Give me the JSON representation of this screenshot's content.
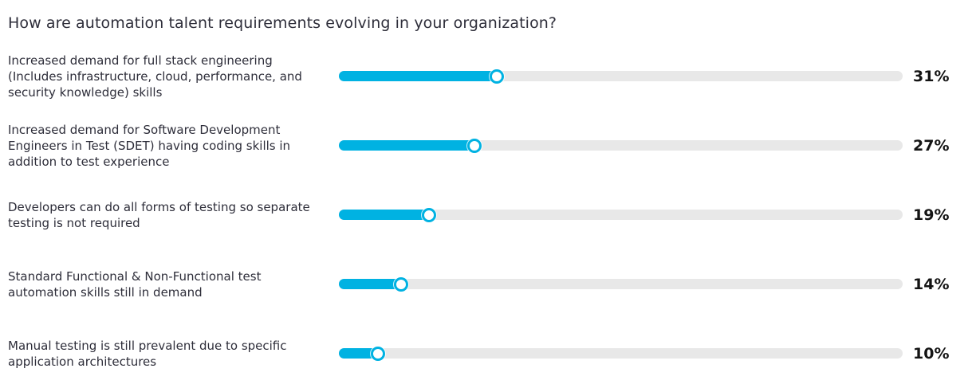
{
  "title": "How are automation talent requirements evolving in your organization?",
  "chart_data": {
    "type": "bar",
    "orientation": "horizontal",
    "style": "slider",
    "title": "How are automation talent requirements evolving in your organization?",
    "categories": [
      "Increased demand for full stack engineering (Includes infrastructure, cloud, performance, and security knowledge) skills",
      "Increased demand for Software Development Engineers in Test (SDET) having coding skills in addition to test experience",
      "Developers can do all forms of testing so separate testing is not required",
      "Standard Functional & Non-Functional test automation skills still in demand",
      "Manual testing is still prevalent due to specific application architectures"
    ],
    "values": [
      31,
      27,
      19,
      14,
      10
    ],
    "value_labels": [
      "31%",
      "27%",
      "19%",
      "14%",
      "10%"
    ],
    "xlabel": "",
    "ylabel": "",
    "xlim": [
      0,
      100
    ],
    "grid": false,
    "legend": false,
    "colors": {
      "fill": "#00b2e2",
      "track": "#e8e8e8",
      "handle_fill": "#ffffff",
      "handle_border": "#00b2e2",
      "category_text": "#2e2e3a",
      "value_text": "#141414",
      "title_text": "#2e2e3a",
      "background": "#ffffff"
    }
  }
}
